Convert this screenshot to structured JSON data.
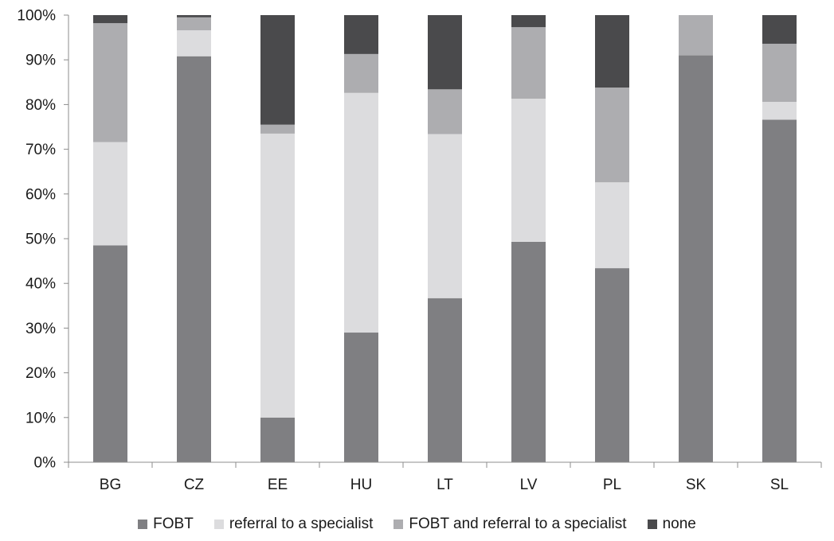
{
  "chart_data": {
    "type": "bar",
    "stacked": true,
    "title": "",
    "xlabel": "",
    "ylabel": "",
    "ylim": [
      0,
      100
    ],
    "yticks": [
      "0%",
      "10%",
      "20%",
      "30%",
      "40%",
      "50%",
      "60%",
      "70%",
      "80%",
      "90%",
      "100%"
    ],
    "categories": [
      "BG",
      "CZ",
      "EE",
      "HU",
      "LT",
      "LV",
      "PL",
      "SK",
      "SL"
    ],
    "series": [
      {
        "name": "FOBT",
        "color": "#7f7f82",
        "values": [
          48.5,
          90.8,
          10.0,
          29.0,
          36.7,
          49.3,
          43.4,
          91.0,
          76.6
        ]
      },
      {
        "name": "referral to a specialist",
        "color": "#dcdcde",
        "values": [
          23.1,
          5.8,
          63.5,
          53.6,
          36.7,
          32.0,
          19.2,
          0,
          4.0
        ]
      },
      {
        "name": "FOBT and referral to a specialist",
        "color": "#adadb0",
        "values": [
          26.6,
          2.9,
          2.0,
          8.7,
          10.0,
          16.0,
          21.2,
          9.0,
          13.0
        ]
      },
      {
        "name": "none",
        "color": "#4a4a4c",
        "values": [
          1.8,
          0.5,
          24.5,
          8.7,
          16.6,
          2.7,
          16.2,
          0,
          6.4
        ]
      }
    ],
    "grid": false,
    "legend_position": "bottom"
  }
}
